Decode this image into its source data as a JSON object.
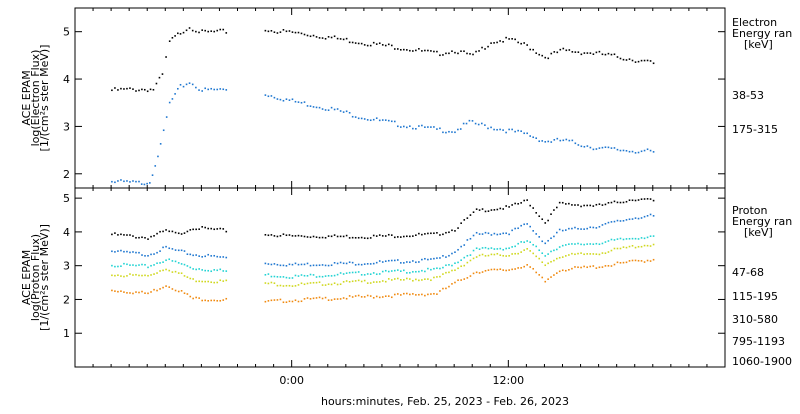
{
  "chart_data": [
    {
      "type": "scatter",
      "panel": "electron",
      "ylabel": [
        "ACE EPAM",
        "log(Electron Flux)",
        "[1/(cm²s ster MeV)]"
      ],
      "ylim": [
        1.7,
        5.5
      ],
      "yticks": [
        2,
        3,
        4,
        5
      ],
      "legend_title": [
        "Electron",
        "Energy ran",
        "[keV]"
      ],
      "series": [
        {
          "name": "38-53",
          "color": "#000000",
          "points": [
            [
              -10,
              3.78
            ],
            [
              -8.5,
              3.8
            ],
            [
              -7.7,
              3.8
            ],
            [
              -7.2,
              4.1
            ],
            [
              -6.8,
              4.8
            ],
            [
              -6.2,
              5.0
            ],
            [
              -5.7,
              5.12
            ],
            [
              -5,
              5.0
            ],
            [
              -3.5,
              5.02
            ],
            [
              -1.5,
              5.05
            ],
            [
              0,
              5.0
            ],
            [
              2,
              4.9
            ],
            [
              4,
              4.78
            ],
            [
              6,
              4.68
            ],
            [
              8,
              4.55
            ],
            [
              9,
              4.62
            ],
            [
              10,
              4.5
            ],
            [
              11,
              4.8
            ],
            [
              12,
              4.85
            ],
            [
              13,
              4.72
            ],
            [
              14,
              4.48
            ],
            [
              15,
              4.62
            ],
            [
              17,
              4.55
            ],
            [
              19,
              4.42
            ],
            [
              20,
              4.35
            ]
          ],
          "gaps_after_x": [
            -3.5
          ]
        },
        {
          "name": "175-315",
          "color": "#1f77d0",
          "points": [
            [
              -10,
              1.85
            ],
            [
              -8.5,
              1.82
            ],
            [
              -7.9,
              1.85
            ],
            [
              -7.3,
              2.6
            ],
            [
              -6.8,
              3.5
            ],
            [
              -6.2,
              3.85
            ],
            [
              -5.7,
              3.95
            ],
            [
              -5,
              3.78
            ],
            [
              -3.5,
              3.8
            ],
            [
              -1.5,
              3.7
            ],
            [
              0,
              3.55
            ],
            [
              2,
              3.4
            ],
            [
              4,
              3.2
            ],
            [
              6,
              3.05
            ],
            [
              8,
              2.95
            ],
            [
              9,
              2.92
            ],
            [
              9.8,
              3.1
            ],
            [
              11,
              3.0
            ],
            [
              13,
              2.85
            ],
            [
              14,
              2.7
            ],
            [
              15,
              2.72
            ],
            [
              17,
              2.55
            ],
            [
              19,
              2.5
            ],
            [
              20,
              2.48
            ]
          ],
          "gaps_after_x": [
            -3.5
          ]
        }
      ]
    },
    {
      "type": "scatter",
      "panel": "proton",
      "ylabel": [
        "ACE EPAM",
        "log(Proton Flux)",
        "[1/(cm²s ster MeV)]"
      ],
      "ylim": [
        0,
        5.3
      ],
      "yticks": [
        1,
        2,
        3,
        4,
        5
      ],
      "legend_title": [
        "Proton",
        "Energy ran",
        "[keV]"
      ],
      "series": [
        {
          "name": "47-68",
          "color": "#000000",
          "points": [
            [
              -10,
              3.95
            ],
            [
              -8,
              3.85
            ],
            [
              -7,
              4.05
            ],
            [
              -6.3,
              3.95
            ],
            [
              -5.5,
              4.15
            ],
            [
              -3.5,
              4.05
            ],
            [
              -1.5,
              3.95
            ],
            [
              0,
              3.9
            ],
            [
              4,
              3.88
            ],
            [
              8,
              3.95
            ],
            [
              9,
              4.1
            ],
            [
              10.2,
              4.65
            ],
            [
              12,
              4.75
            ],
            [
              13,
              4.95
            ],
            [
              14,
              4.3
            ],
            [
              14.8,
              4.85
            ],
            [
              17,
              4.8
            ],
            [
              19,
              5.0
            ],
            [
              20,
              4.95
            ]
          ],
          "gaps_after_x": [
            -3.5
          ]
        },
        {
          "name": "115-195",
          "color": "#1f77d0",
          "points": [
            [
              -10,
              3.45
            ],
            [
              -8,
              3.35
            ],
            [
              -7,
              3.55
            ],
            [
              -6.3,
              3.45
            ],
            [
              -5.5,
              3.35
            ],
            [
              -3.5,
              3.25
            ],
            [
              -1.5,
              3.1
            ],
            [
              0,
              3.05
            ],
            [
              4,
              3.1
            ],
            [
              8,
              3.2
            ],
            [
              9,
              3.45
            ],
            [
              10.2,
              3.95
            ],
            [
              12,
              4.0
            ],
            [
              13,
              4.25
            ],
            [
              14,
              3.7
            ],
            [
              14.8,
              4.05
            ],
            [
              17,
              4.2
            ],
            [
              19,
              4.45
            ],
            [
              20,
              4.5
            ]
          ],
          "gaps_after_x": [
            -3.5
          ]
        },
        {
          "name": "310-580",
          "color": "#22d3d3",
          "points": [
            [
              -10,
              3.05
            ],
            [
              -8,
              3.0
            ],
            [
              -7,
              3.2
            ],
            [
              -6.3,
              3.1
            ],
            [
              -5.5,
              2.95
            ],
            [
              -3.5,
              2.85
            ],
            [
              -1.5,
              2.75
            ],
            [
              0,
              2.7
            ],
            [
              4,
              2.8
            ],
            [
              8,
              2.9
            ],
            [
              9,
              3.1
            ],
            [
              10.2,
              3.5
            ],
            [
              12,
              3.55
            ],
            [
              13,
              3.75
            ],
            [
              14,
              3.35
            ],
            [
              14.8,
              3.6
            ],
            [
              17,
              3.7
            ],
            [
              19,
              3.85
            ],
            [
              20,
              3.9
            ]
          ],
          "gaps_after_x": [
            -3.5
          ]
        },
        {
          "name": "795-1193",
          "color": "#d0d820",
          "points": [
            [
              -10,
              2.75
            ],
            [
              -8,
              2.72
            ],
            [
              -7,
              2.95
            ],
            [
              -6.3,
              2.8
            ],
            [
              -5.5,
              2.6
            ],
            [
              -3.5,
              2.55
            ],
            [
              -1.5,
              2.5
            ],
            [
              0,
              2.45
            ],
            [
              4,
              2.55
            ],
            [
              8,
              2.65
            ],
            [
              9,
              2.9
            ],
            [
              10.2,
              3.3
            ],
            [
              12,
              3.35
            ],
            [
              13,
              3.5
            ],
            [
              14,
              3.05
            ],
            [
              14.8,
              3.3
            ],
            [
              17,
              3.4
            ],
            [
              19,
              3.6
            ],
            [
              20,
              3.65
            ]
          ],
          "gaps_after_x": [
            -3.5
          ]
        },
        {
          "name": "1060-1900",
          "color": "#f08a10",
          "points": [
            [
              -10,
              2.3
            ],
            [
              -8,
              2.2
            ],
            [
              -7,
              2.45
            ],
            [
              -6.3,
              2.3
            ],
            [
              -5.5,
              2.05
            ],
            [
              -3.5,
              2.0
            ],
            [
              -1.5,
              1.95
            ],
            [
              0,
              2.0
            ],
            [
              4,
              2.1
            ],
            [
              8,
              2.2
            ],
            [
              9,
              2.5
            ],
            [
              10.2,
              2.85
            ],
            [
              12,
              2.9
            ],
            [
              13,
              3.05
            ],
            [
              14,
              2.55
            ],
            [
              14.8,
              2.9
            ],
            [
              17,
              3.0
            ],
            [
              19,
              3.15
            ],
            [
              20,
              3.2
            ]
          ],
          "gaps_after_x": [
            -3.5
          ]
        }
      ]
    }
  ],
  "x_axis": {
    "label": "hours:minutes, Feb. 25, 2023 - Feb. 26, 2023",
    "xlim": [
      -12,
      24
    ],
    "ticks": [
      {
        "x": 0,
        "label": "0:00"
      },
      {
        "x": 12,
        "label": "12:00"
      }
    ],
    "minor_step": 1
  }
}
